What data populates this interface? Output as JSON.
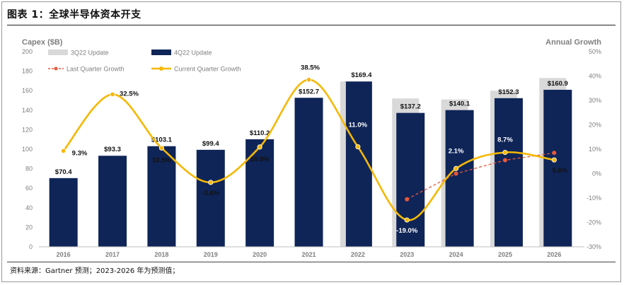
{
  "figure": {
    "title": "图表 1：全球半导体资本开支",
    "source": "资料来源：Gartner 预测；2023-2026 年为预测值；"
  },
  "colors": {
    "prev_bar": "#d9d9d9",
    "curr_bar": "#0f2558",
    "last_line": "#e8583a",
    "curr_line": "#f5b800",
    "axis_text": "#7f7f7f"
  },
  "chart_data": {
    "type": "bar",
    "categories": [
      "2016",
      "2017",
      "2018",
      "2019",
      "2020",
      "2021",
      "2022",
      "2023",
      "2024",
      "2025",
      "2026"
    ],
    "ylabel_left": "Capex ($B)",
    "ylabel_right": "Annual Growth",
    "ylim_left": [
      0,
      200
    ],
    "yticks_left": [
      "0",
      "20",
      "40",
      "60",
      "80",
      "100",
      "120",
      "140",
      "160",
      "180",
      "200"
    ],
    "ylim_right": [
      -30,
      50
    ],
    "yticks_right": [
      "-30%",
      "-20%",
      "-10%",
      "0%",
      "10%",
      "20%",
      "30%",
      "40%",
      "50%"
    ],
    "legend_position": "top-left",
    "grid": false,
    "series": [
      {
        "name": "3Q22 Update",
        "kind": "bar",
        "values": [
          70.4,
          93.3,
          103.1,
          99.4,
          110.2,
          152.7,
          169.4,
          152,
          151,
          160,
          173
        ]
      },
      {
        "name": "4Q22 Update",
        "kind": "bar",
        "values": [
          70.4,
          93.3,
          103.1,
          99.4,
          110.2,
          152.7,
          169.4,
          137.2,
          140.1,
          152.3,
          160.9
        ],
        "labels": [
          "$70.4",
          "$93.3",
          "$103.1",
          "$99.4",
          "$110.2",
          "$152.7",
          "$169.4",
          "$137.2",
          "$140.1",
          "$152.3",
          "$160.9"
        ]
      },
      {
        "name": "Last Quarter Growth",
        "kind": "line",
        "axis": "right",
        "x": [
          "2023",
          "2024",
          "2025",
          "2026"
        ],
        "values": [
          -10.5,
          0,
          5.5,
          8.5
        ]
      },
      {
        "name": "Current Quarter Growth",
        "kind": "line",
        "axis": "right",
        "values": [
          9.3,
          32.5,
          10.5,
          -3.6,
          10.9,
          38.5,
          11.0,
          -19.0,
          2.1,
          8.7,
          5.6
        ],
        "labels": [
          "9.3%",
          "32.5%",
          "10.5%",
          "-3.6%",
          "10.9%",
          "38.5%",
          "11.0%",
          "-19.0%",
          "2.1%",
          "8.7%",
          "5.6%"
        ]
      }
    ]
  }
}
